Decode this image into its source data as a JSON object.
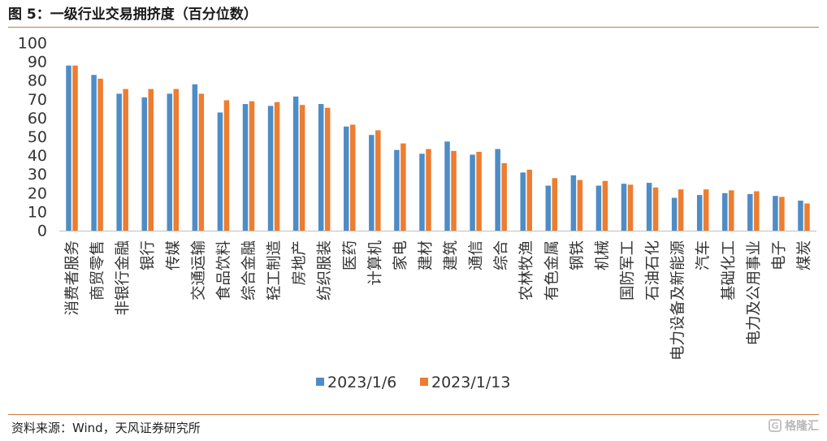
{
  "header": {
    "title": "图 5：一级行业交易拥挤度（百分位数）"
  },
  "footer": {
    "source": "资料来源：Wind，天风证券研究所",
    "watermark": "格隆汇"
  },
  "chart_data": {
    "type": "bar",
    "categories": [
      "消费者服务",
      "商贸零售",
      "非银行金融",
      "银行",
      "传媒",
      "交通运输",
      "食品饮料",
      "综合金融",
      "轻工制造",
      "房地产",
      "纺织服装",
      "医药",
      "计算机",
      "家电",
      "建材",
      "建筑",
      "通信",
      "综合",
      "农林牧渔",
      "有色金属",
      "钢铁",
      "机械",
      "国防军工",
      "石油石化",
      "电力设备及新能源",
      "汽车",
      "基础化工",
      "电力及公用事业",
      "电子",
      "煤炭"
    ],
    "series": [
      {
        "name": "2023/1/6",
        "color": "#4e8cc6",
        "values": [
          88,
          83,
          73,
          71,
          73,
          78,
          63,
          67.5,
          66.5,
          71.5,
          67.5,
          55.5,
          51,
          43,
          41,
          47.5,
          40.5,
          43.5,
          31,
          24,
          29.5,
          24,
          25,
          25.5,
          17.5,
          19,
          20,
          19.5,
          18.5,
          16
        ]
      },
      {
        "name": "2023/1/13",
        "color": "#ed7d31",
        "values": [
          88,
          81,
          75.5,
          75.5,
          75.5,
          73,
          69.5,
          69,
          68.5,
          67,
          65.5,
          56.5,
          53.5,
          46.5,
          43.5,
          42.5,
          42,
          36,
          32.5,
          28,
          27,
          26.5,
          24.5,
          23,
          22,
          22,
          21.5,
          21,
          18,
          14.5
        ]
      }
    ],
    "ylim": [
      0,
      100
    ],
    "yticks": [
      0,
      10,
      20,
      30,
      40,
      50,
      60,
      70,
      80,
      90,
      100
    ],
    "grid": false,
    "legend_position": "bottom"
  }
}
